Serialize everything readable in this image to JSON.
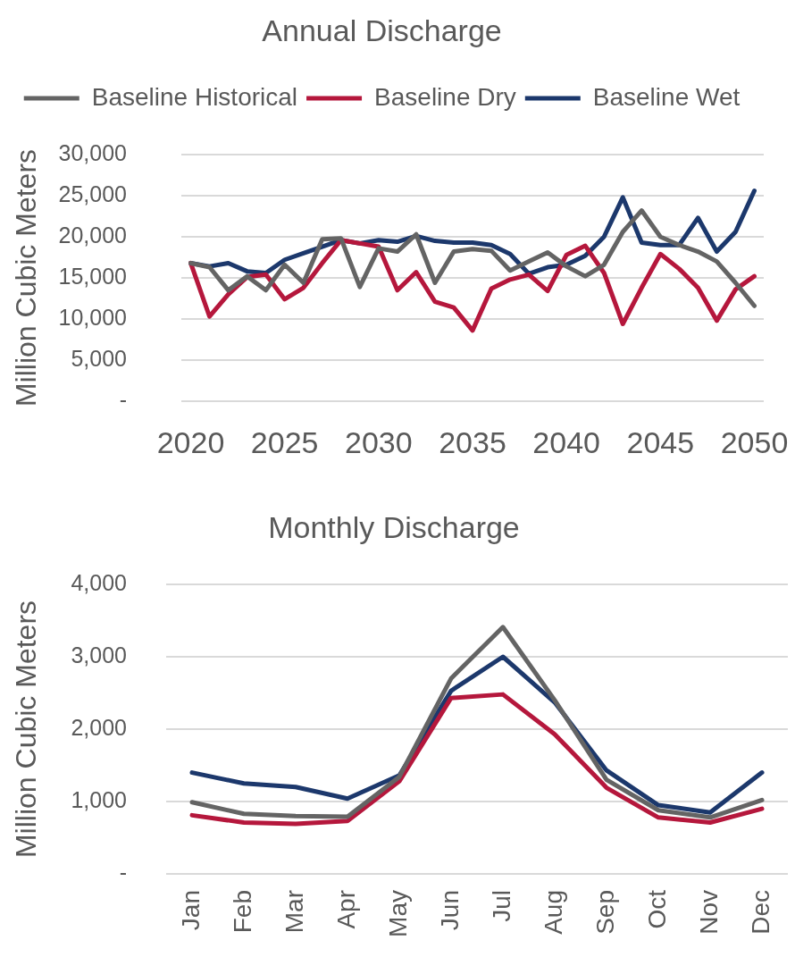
{
  "chart_data": [
    {
      "type": "line",
      "title": "Annual Discharge",
      "ylabel": "Million Cubic Meters",
      "x": [
        2020,
        2021,
        2022,
        2023,
        2024,
        2025,
        2026,
        2027,
        2028,
        2029,
        2030,
        2031,
        2032,
        2033,
        2034,
        2035,
        2036,
        2037,
        2038,
        2039,
        2040,
        2041,
        2042,
        2043,
        2044,
        2045,
        2046,
        2047,
        2048,
        2049,
        2050
      ],
      "xlim": [
        2019.5,
        2050.5
      ],
      "xticks": [
        2020,
        2025,
        2030,
        2035,
        2040,
        2045,
        2050
      ],
      "ylim": [
        0,
        30000
      ],
      "yticks": [
        {
          "value": 0,
          "label": "-"
        },
        {
          "value": 5000,
          "label": "5,000"
        },
        {
          "value": 10000,
          "label": "10,000"
        },
        {
          "value": 15000,
          "label": "15,000"
        },
        {
          "value": 20000,
          "label": "20,000"
        },
        {
          "value": 25000,
          "label": "25,000"
        },
        {
          "value": 30000,
          "label": "30,000"
        }
      ],
      "grid": "y",
      "legend": "top",
      "series": [
        {
          "name": "Baseline Historical",
          "color": "#646464",
          "values": [
            16800,
            16300,
            13500,
            15200,
            13500,
            16600,
            14400,
            19700,
            19800,
            13900,
            18600,
            18200,
            20300,
            14400,
            18200,
            18500,
            18300,
            15900,
            17000,
            18100,
            16400,
            15200,
            16600,
            20600,
            23200,
            20000,
            19000,
            18200,
            17000,
            14400,
            11600
          ]
        },
        {
          "name": "Baseline Dry",
          "color": "#b5173c",
          "values": [
            16800,
            10300,
            13000,
            15100,
            15400,
            12400,
            13800,
            16800,
            19600,
            19200,
            18800,
            13500,
            15700,
            12100,
            11400,
            8600,
            13700,
            14800,
            15400,
            13400,
            17800,
            18900,
            15600,
            9400,
            13800,
            17900,
            16100,
            13800,
            9800,
            13600,
            15200
          ]
        },
        {
          "name": "Baseline Wet",
          "color": "#1c386c",
          "values": [
            16800,
            16400,
            16800,
            15800,
            15600,
            17200,
            18000,
            18800,
            19600,
            19200,
            19600,
            19400,
            20100,
            19500,
            19300,
            19300,
            19000,
            17900,
            15500,
            16300,
            16600,
            17700,
            20000,
            24800,
            19300,
            19000,
            19000,
            22300,
            18200,
            20600,
            25600
          ]
        }
      ]
    },
    {
      "type": "line",
      "title": "Monthly Discharge",
      "ylabel": "Million Cubic Meters",
      "categories": [
        "Jan",
        "Feb",
        "Mar",
        "Apr",
        "May",
        "Jun",
        "Jul",
        "Aug",
        "Sep",
        "Oct",
        "Nov",
        "Dec"
      ],
      "ylim": [
        0,
        4000
      ],
      "yticks": [
        {
          "value": 0,
          "label": "-"
        },
        {
          "value": 1000,
          "label": "1,000"
        },
        {
          "value": 2000,
          "label": "2,000"
        },
        {
          "value": 3000,
          "label": "3,000"
        },
        {
          "value": 4000,
          "label": "4,000"
        }
      ],
      "grid": "y",
      "series": [
        {
          "color": "#646464",
          "values": [
            990,
            830,
            800,
            790,
            1340,
            2700,
            3410,
            2400,
            1300,
            880,
            780,
            1020
          ]
        },
        {
          "color": "#b5173c",
          "values": [
            810,
            710,
            690,
            730,
            1280,
            2430,
            2480,
            1930,
            1190,
            780,
            710,
            900
          ]
        },
        {
          "color": "#1c386c",
          "values": [
            1400,
            1250,
            1200,
            1040,
            1360,
            2530,
            3000,
            2370,
            1430,
            950,
            850,
            1400
          ]
        }
      ]
    }
  ]
}
